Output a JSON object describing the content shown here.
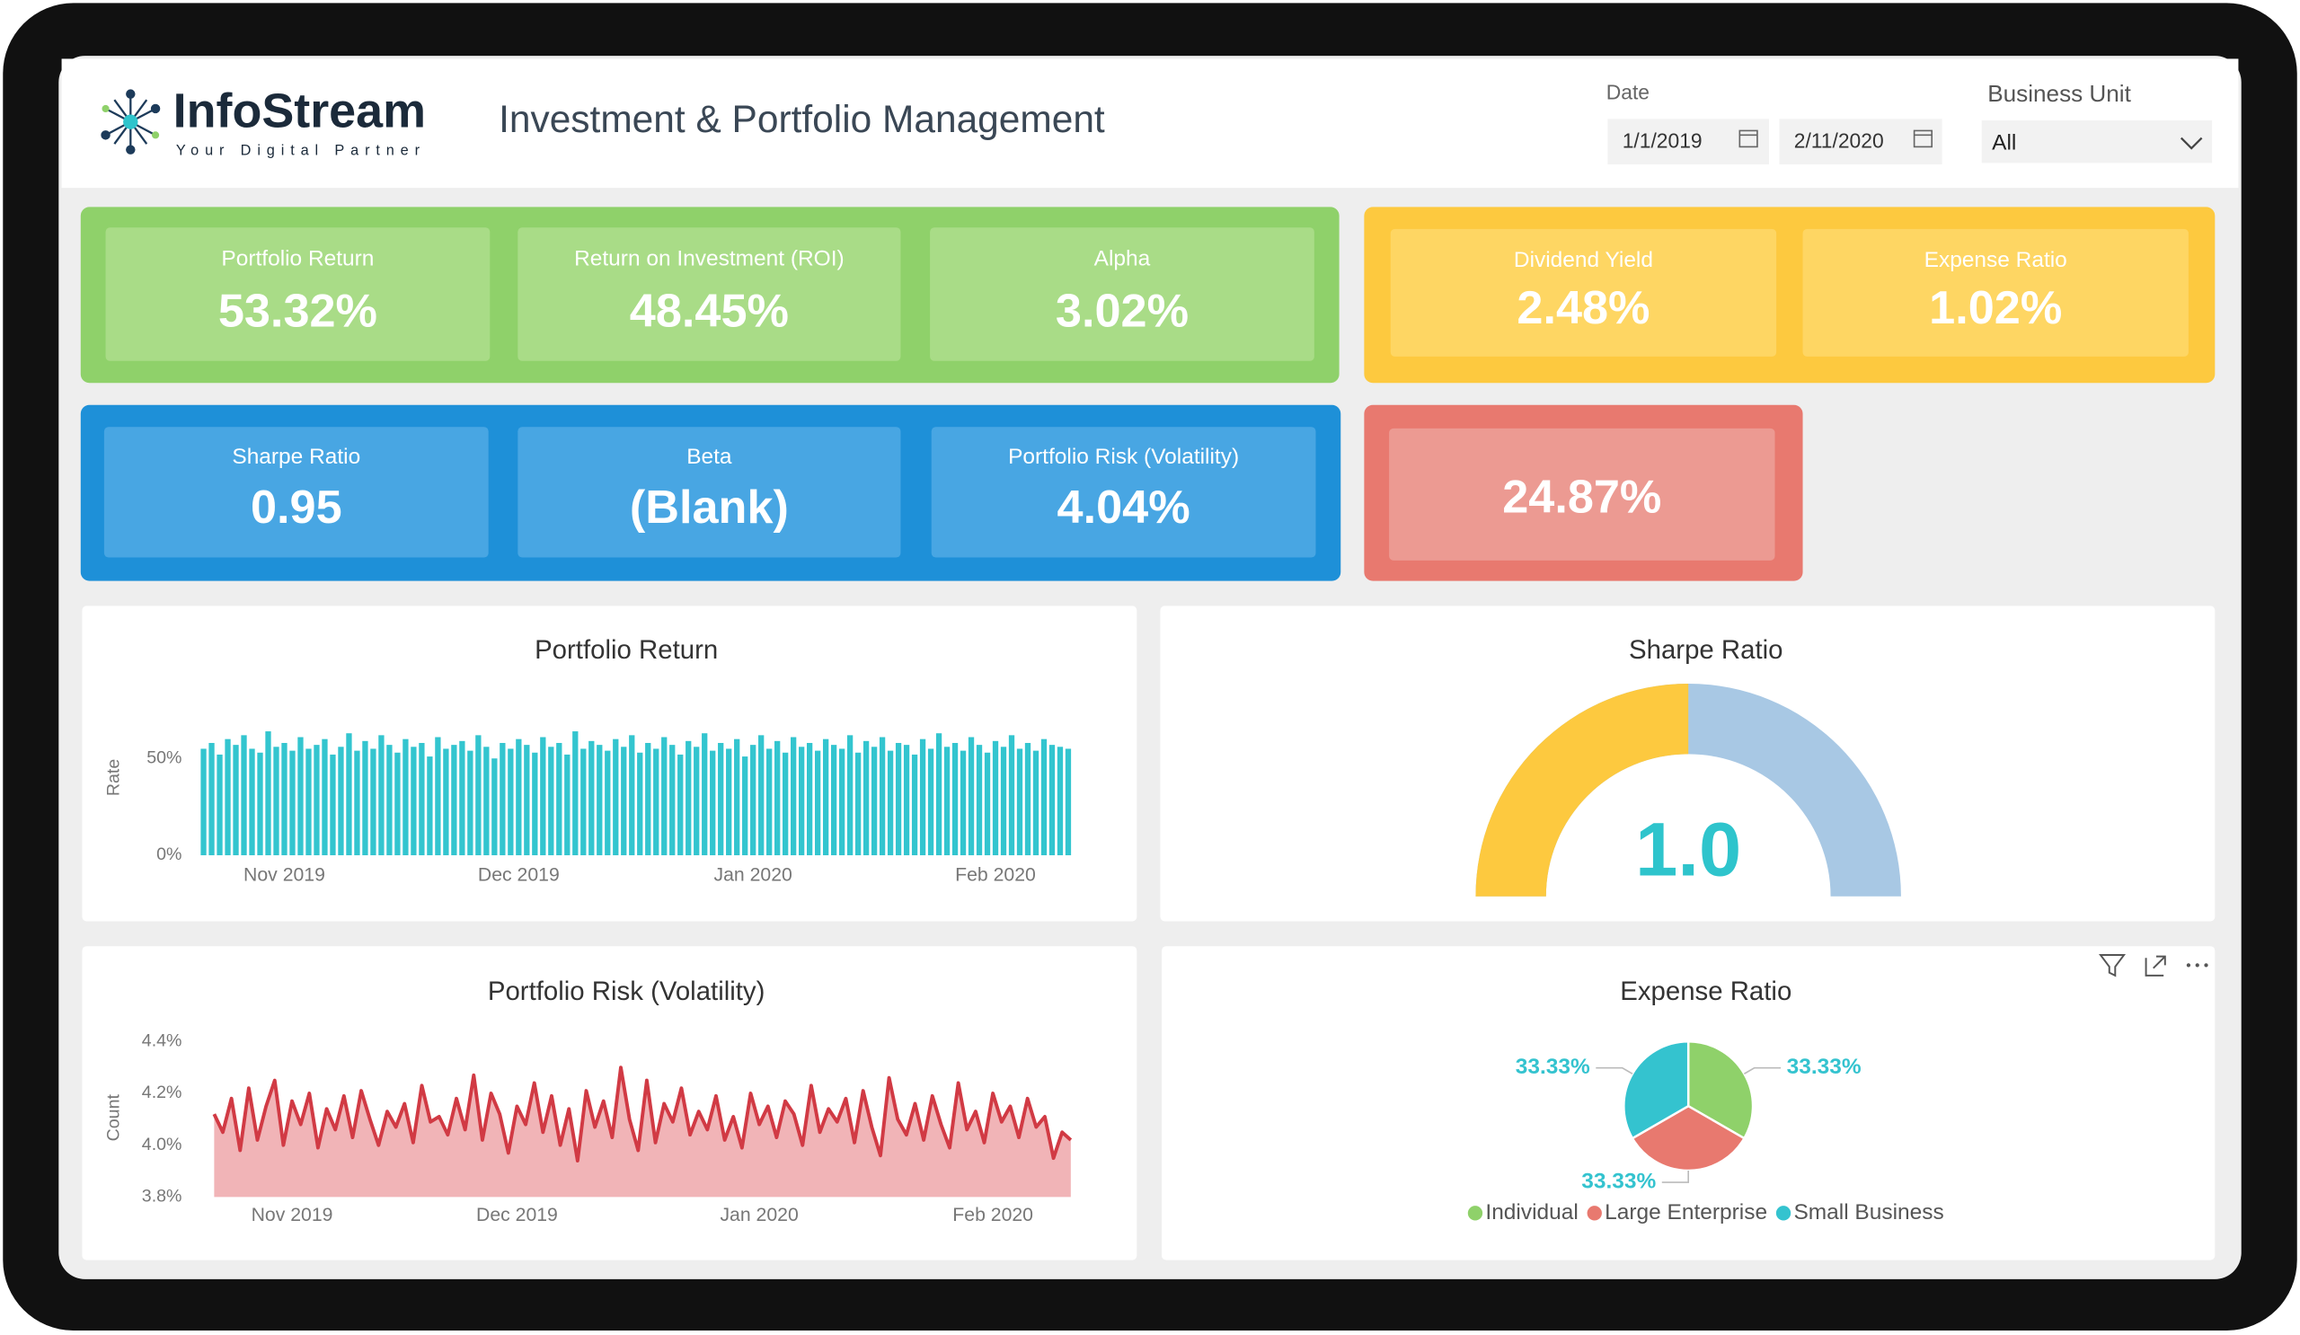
{
  "header": {
    "logo_name": "InfoStream",
    "tagline": "Your Digital Partner",
    "title": "Investment & Portfolio Management",
    "date_label": "Date",
    "date_start": "1/1/2019",
    "date_end": "2/11/2020",
    "unit_label": "Business Unit",
    "unit_value": "All"
  },
  "kpis": [
    {
      "cards": [
        {
          "label": "Portfolio Return",
          "value": "53.32%"
        },
        {
          "label": "Return on Investment (ROI)",
          "value": "48.45%"
        },
        {
          "label": "Alpha",
          "value": "3.02%"
        }
      ]
    },
    {
      "cards": [
        {
          "label": "Dividend Yield",
          "value": "2.48%"
        },
        {
          "label": "Expense Ratio",
          "value": "1.02%"
        }
      ]
    },
    {
      "cards": [
        {
          "label": "Sharpe Ratio",
          "value": "0.95"
        },
        {
          "label": "Beta",
          "value": "(Blank)"
        },
        {
          "label": "Portfolio Risk (Volatility)",
          "value": "4.04%"
        }
      ]
    },
    {
      "cards": [
        {
          "value": "24.87%"
        }
      ]
    }
  ],
  "chart_data": [
    {
      "type": "bar",
      "title": "Portfolio Return",
      "y_label": "Rate",
      "color": "#33c5cf",
      "grid": false,
      "categories": [
        null,
        null,
        null,
        null,
        null,
        null,
        null,
        null,
        null,
        null,
        "Nov 2019",
        null,
        null,
        null,
        null,
        null,
        null,
        null,
        null,
        null,
        null,
        null,
        null,
        null,
        null,
        null,
        null,
        null,
        null,
        null,
        null,
        null,
        null,
        null,
        null,
        null,
        null,
        null,
        null,
        "Dec 2019",
        null,
        null,
        null,
        null,
        null,
        null,
        null,
        null,
        null,
        null,
        null,
        null,
        null,
        null,
        null,
        null,
        null,
        null,
        null,
        null,
        null,
        null,
        null,
        null,
        null,
        null,
        null,
        null,
        "Jan 2020",
        null,
        null,
        null,
        null,
        null,
        null,
        null,
        null,
        null,
        null,
        null,
        null,
        null,
        null,
        null,
        null,
        null,
        null,
        null,
        null,
        null,
        null,
        null,
        null,
        null,
        null,
        null,
        null,
        null,
        "Feb 2020",
        null,
        null,
        null,
        null,
        null,
        null,
        null,
        null,
        null
      ],
      "values": [
        55,
        58,
        52,
        60,
        57,
        62,
        55,
        53,
        64,
        56,
        58,
        54,
        61,
        55,
        57,
        60,
        52,
        56,
        63,
        54,
        59,
        55,
        62,
        57,
        53,
        60,
        56,
        58,
        51,
        61,
        55,
        57,
        59,
        54,
        62,
        56,
        50,
        58,
        55,
        60,
        57,
        53,
        61,
        56,
        58,
        52,
        64,
        55,
        59,
        57,
        54,
        60,
        56,
        62,
        53,
        58,
        55,
        61,
        57,
        52,
        59,
        56,
        63,
        54,
        58,
        55,
        60,
        51,
        57,
        62,
        55,
        59,
        53,
        61,
        56,
        58,
        54,
        60,
        57,
        55,
        62,
        53,
        59,
        56,
        61,
        54,
        58,
        57,
        52,
        60,
        55,
        63,
        56,
        58,
        54,
        61,
        57,
        53,
        59,
        56,
        62,
        55,
        58,
        54,
        60,
        57,
        56,
        55
      ],
      "ylim": [
        0,
        75
      ],
      "yticks": [
        {
          "value": 0,
          "label": "0%"
        },
        {
          "value": 50,
          "label": "50%"
        }
      ]
    },
    {
      "type": "gauge",
      "title": "Sharpe Ratio",
      "value": 1,
      "value_label": "1.0",
      "min": 0,
      "max": 2,
      "color": "#fdc93f",
      "track_color": "#a8c8e4"
    },
    {
      "type": "line",
      "title": "Portfolio Risk (Volatility)",
      "y_label": "Count",
      "color": "#d13a44",
      "area_color": "#f1b4b7",
      "grid": false,
      "categories": [
        null,
        null,
        null,
        null,
        null,
        null,
        null,
        null,
        null,
        "Nov 2019",
        null,
        null,
        null,
        null,
        null,
        null,
        null,
        null,
        null,
        null,
        null,
        null,
        null,
        null,
        null,
        null,
        null,
        null,
        null,
        null,
        null,
        null,
        null,
        null,
        null,
        "Dec 2019",
        null,
        null,
        null,
        null,
        null,
        null,
        null,
        null,
        null,
        null,
        null,
        null,
        null,
        null,
        null,
        null,
        null,
        null,
        null,
        null,
        null,
        null,
        null,
        null,
        null,
        null,
        null,
        "Jan 2020",
        null,
        null,
        null,
        null,
        null,
        null,
        null,
        null,
        null,
        null,
        null,
        null,
        null,
        null,
        null,
        null,
        null,
        null,
        null,
        null,
        null,
        null,
        null,
        null,
        null,
        null,
        "Feb 2020",
        null,
        null,
        null,
        null,
        null,
        null,
        null,
        null,
        null
      ],
      "values": [
        4.12,
        4.05,
        4.18,
        3.98,
        4.22,
        4.02,
        4.15,
        4.25,
        4.0,
        4.17,
        4.08,
        4.2,
        3.99,
        4.14,
        4.06,
        4.19,
        4.03,
        4.21,
        4.1,
        4.0,
        4.13,
        4.07,
        4.16,
        4.01,
        4.23,
        4.09,
        4.11,
        4.04,
        4.18,
        4.06,
        4.27,
        4.02,
        4.2,
        4.12,
        3.97,
        4.15,
        4.08,
        4.24,
        4.05,
        4.19,
        4.0,
        4.14,
        3.94,
        4.21,
        4.07,
        4.17,
        4.03,
        4.3,
        4.1,
        3.98,
        4.25,
        4.01,
        4.16,
        4.09,
        4.22,
        4.04,
        4.13,
        4.06,
        4.19,
        4.02,
        4.11,
        3.99,
        4.2,
        4.08,
        4.15,
        4.03,
        4.17,
        4.12,
        4.0,
        4.23,
        4.05,
        4.14,
        4.09,
        4.18,
        4.01,
        4.21,
        4.07,
        3.96,
        4.26,
        4.1,
        4.04,
        4.16,
        4.02,
        4.19,
        4.08,
        3.99,
        4.24,
        4.06,
        4.13,
        4.01,
        4.2,
        4.09,
        4.15,
        4.03,
        4.18,
        4.07,
        4.11,
        3.95,
        4.05,
        4.02
      ],
      "ylim": [
        3.8,
        4.4
      ],
      "yticks": [
        {
          "value": 3.8,
          "label": "3.8%"
        },
        {
          "value": 4.0,
          "label": "4.0%"
        },
        {
          "value": 4.2,
          "label": "4.2%"
        },
        {
          "value": 4.4,
          "label": "4.4%"
        }
      ]
    },
    {
      "type": "pie",
      "title": "Expense Ratio",
      "categories": [
        "Individual",
        "Large Enterprise",
        "Small Business"
      ],
      "values": [
        33.33,
        33.33,
        33.33
      ],
      "value_labels": [
        "33.33%",
        "33.33%",
        "33.33%"
      ],
      "colors": [
        "#8fd16a",
        "#e8796f",
        "#34c3cf"
      ],
      "legend": "bottom"
    }
  ]
}
